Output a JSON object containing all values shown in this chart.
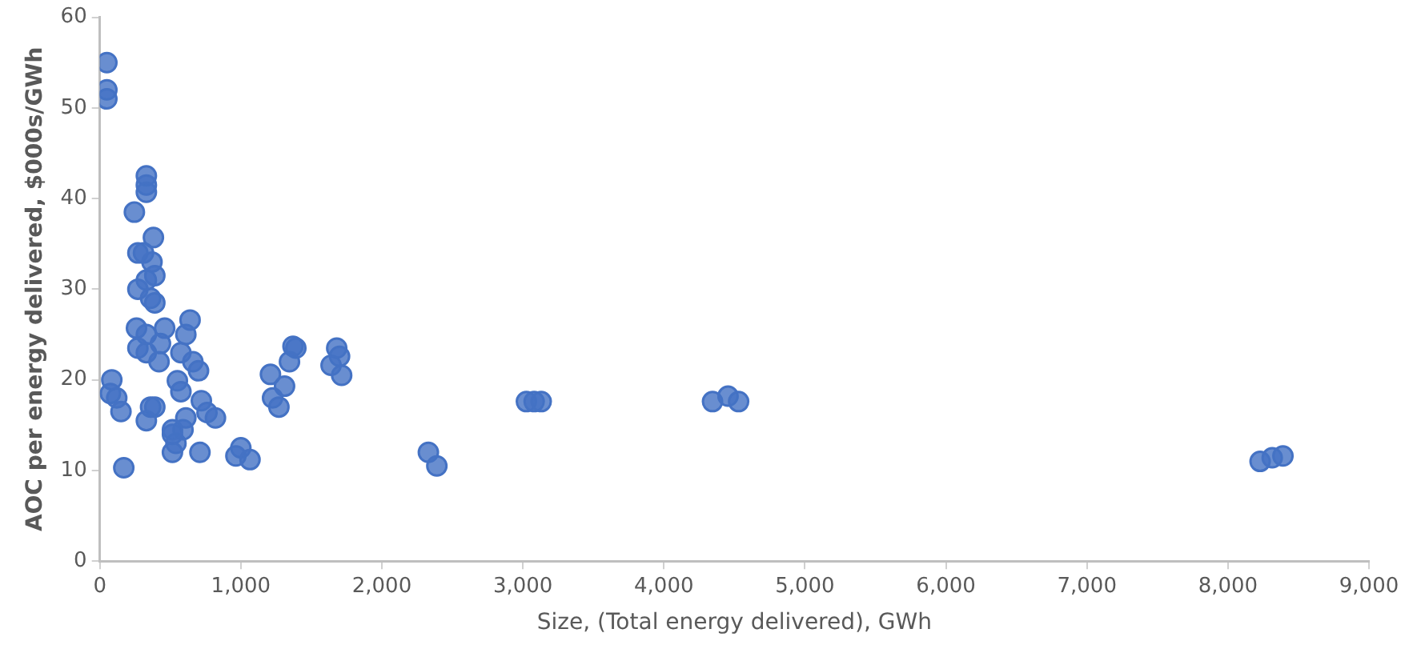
{
  "chart_data": {
    "type": "scatter",
    "xlabel": "Size, (Total energy delivered), GWh",
    "ylabel": "AOC per energy delivered, $000s/GWh",
    "marker": "circle",
    "grid": false,
    "legend": false,
    "xlim": [
      0,
      9000
    ],
    "xticks": [
      {
        "value": 0,
        "label": "0"
      },
      {
        "value": 1000,
        "label": "1,000"
      },
      {
        "value": 2000,
        "label": "2,000"
      },
      {
        "value": 3000,
        "label": "3,000"
      },
      {
        "value": 4000,
        "label": "4,000"
      },
      {
        "value": 5000,
        "label": "5,000"
      },
      {
        "value": 6000,
        "label": "6,000"
      },
      {
        "value": 7000,
        "label": "7,000"
      },
      {
        "value": 8000,
        "label": "8,000"
      },
      {
        "value": 9000,
        "label": "9,000"
      }
    ],
    "ylim": [
      0,
      60
    ],
    "yticks": [
      0,
      10,
      20,
      30,
      40,
      50,
      60
    ],
    "series": [
      {
        "color": "#4472c4",
        "x": [
          50,
          50,
          50,
          85,
          75,
          120,
          150,
          170,
          245,
          330,
          330,
          330,
          270,
          310,
          380,
          370,
          330,
          390,
          270,
          360,
          390,
          260,
          330,
          270,
          330,
          430,
          460,
          420,
          360,
          390,
          330,
          515,
          540,
          590,
          575,
          610,
          640,
          660,
          700,
          550,
          575,
          720,
          760,
          820,
          710,
          515,
          610,
          515,
          1370,
          1390,
          1345,
          1210,
          1310,
          1225,
          1270,
          1680,
          1700,
          1640,
          1715,
          1000,
          965,
          1065,
          2330,
          2390,
          3025,
          3080,
          3130,
          4345,
          4455,
          4530,
          8228,
          8314,
          8390
        ],
        "values": [
          55,
          52,
          51,
          20,
          18.5,
          18,
          16.5,
          10.3,
          38.5,
          42.5,
          41.5,
          40.7,
          34,
          34,
          35.7,
          33,
          31,
          31.5,
          30,
          29,
          28.5,
          25.7,
          25,
          23.5,
          23,
          24,
          25.7,
          22,
          17,
          17,
          15.5,
          14,
          13,
          14.5,
          23,
          25,
          26.6,
          22,
          21,
          19.9,
          18.7,
          17.7,
          16.4,
          15.8,
          12,
          12,
          15.8,
          14.5,
          23.7,
          23.5,
          22,
          20.6,
          19.3,
          18,
          17,
          23.5,
          22.6,
          21.6,
          20.5,
          12.5,
          11.6,
          11.2,
          12,
          10.5,
          17.6,
          17.6,
          17.6,
          17.6,
          18.2,
          17.6,
          11,
          11.4,
          11.6
        ]
      }
    ]
  }
}
